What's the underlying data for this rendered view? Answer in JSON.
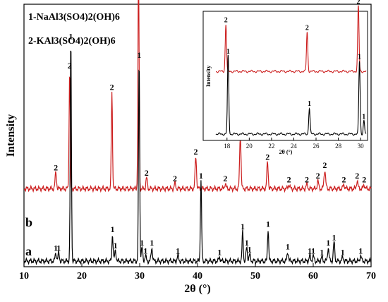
{
  "chart_data": [
    {
      "type": "line",
      "xlabel": "2θ (°)",
      "ylabel": "Intensity",
      "xlim": [
        10,
        70
      ],
      "x_ticks": [
        "10",
        "20",
        "30",
        "40",
        "50",
        "60",
        "70"
      ],
      "legend": [
        {
          "name": "1-NaAl3(SO4)2(OH)6"
        },
        {
          "name": "2-KAl3(SO4)2(OH)6"
        }
      ],
      "series": [
        {
          "name": "b",
          "color": "#cc1f1f",
          "baseline": 0.27,
          "peaks": [
            {
              "x": 15.5,
              "y": 0.06,
              "w": 0.12,
              "label": "2"
            },
            {
              "x": 17.9,
              "y": 0.44,
              "w": 0.1,
              "label": "2"
            },
            {
              "x": 25.2,
              "y": 0.36,
              "w": 0.1,
              "label": "2"
            },
            {
              "x": 29.8,
              "y": 0.82,
              "w": 0.1,
              "label": "2"
            },
            {
              "x": 31.2,
              "y": 0.04,
              "w": 0.12,
              "label": "2"
            },
            {
              "x": 36.1,
              "y": 0.02,
              "w": 0.12,
              "label": "2"
            },
            {
              "x": 39.7,
              "y": 0.12,
              "w": 0.12,
              "label": "2"
            },
            {
              "x": 44.8,
              "y": 0.02,
              "w": 0.12,
              "label": "2"
            },
            {
              "x": 47.4,
              "y": 0.2,
              "w": 0.12,
              "label": "2"
            },
            {
              "x": 52.1,
              "y": 0.1,
              "w": 0.12,
              "label": "2"
            },
            {
              "x": 55.8,
              "y": 0.015,
              "w": 0.14,
              "label": "2"
            },
            {
              "x": 58.9,
              "y": 0.015,
              "w": 0.14,
              "label": "2"
            },
            {
              "x": 60.8,
              "y": 0.03,
              "w": 0.12,
              "label": "2"
            },
            {
              "x": 62.0,
              "y": 0.07,
              "w": 0.14,
              "label": "2"
            },
            {
              "x": 65.3,
              "y": 0.015,
              "w": 0.14,
              "label": "2"
            },
            {
              "x": 67.6,
              "y": 0.03,
              "w": 0.12,
              "label": "2"
            },
            {
              "x": 68.8,
              "y": 0.015,
              "w": 0.12,
              "label": "2"
            }
          ]
        },
        {
          "name": "a",
          "color": "#000000",
          "baseline": 0.0,
          "peaks": [
            {
              "x": 15.5,
              "y": 0.03,
              "w": 0.12,
              "label": "1"
            },
            {
              "x": 16.0,
              "y": 0.03,
              "w": 0.12,
              "label": "1"
            },
            {
              "x": 18.1,
              "y": 0.82,
              "w": 0.1,
              "label": "1"
            },
            {
              "x": 25.3,
              "y": 0.1,
              "w": 0.1,
              "label": "1"
            },
            {
              "x": 25.8,
              "y": 0.04,
              "w": 0.12,
              "label": "1"
            },
            {
              "x": 29.9,
              "y": 0.75,
              "w": 0.1,
              "label": "1"
            },
            {
              "x": 30.4,
              "y": 0.05,
              "w": 0.12,
              "label": "1"
            },
            {
              "x": 31.0,
              "y": 0.02,
              "w": 0.12,
              "label": "1"
            },
            {
              "x": 32.1,
              "y": 0.05,
              "w": 0.12,
              "label": "1"
            },
            {
              "x": 36.6,
              "y": 0.02,
              "w": 0.12,
              "label": "1"
            },
            {
              "x": 40.6,
              "y": 0.3,
              "w": 0.1,
              "label": "1"
            },
            {
              "x": 43.8,
              "y": 0.015,
              "w": 0.12,
              "label": "1"
            },
            {
              "x": 47.8,
              "y": 0.11,
              "w": 0.1,
              "label": "1"
            },
            {
              "x": 48.5,
              "y": 0.05,
              "w": 0.12,
              "label": "1"
            },
            {
              "x": 49.0,
              "y": 0.025,
              "w": 0.12,
              "label": "1"
            },
            {
              "x": 52.2,
              "y": 0.12,
              "w": 0.1,
              "label": "1"
            },
            {
              "x": 55.6,
              "y": 0.035,
              "w": 0.12,
              "label": "1"
            },
            {
              "x": 59.4,
              "y": 0.02,
              "w": 0.12,
              "label": "1"
            },
            {
              "x": 60.0,
              "y": 0.02,
              "w": 0.12,
              "label": "1"
            },
            {
              "x": 61.5,
              "y": 0.015,
              "w": 0.12,
              "label": "1"
            },
            {
              "x": 62.6,
              "y": 0.05,
              "w": 0.12,
              "label": "1"
            },
            {
              "x": 63.6,
              "y": 0.07,
              "w": 0.12,
              "label": "1"
            },
            {
              "x": 65.1,
              "y": 0.015,
              "w": 0.12,
              "label": "1"
            },
            {
              "x": 68.2,
              "y": 0.02,
              "w": 0.12,
              "label": "1"
            }
          ]
        }
      ]
    },
    {
      "type": "line",
      "xlabel": "2θ (°)",
      "ylabel": "Intensity",
      "xlim": [
        17,
        30.5
      ],
      "x_ticks": [
        "18",
        "20",
        "22",
        "24",
        "26",
        "28",
        "30"
      ],
      "series": [
        {
          "name": "2",
          "color": "#cc1f1f",
          "baseline": 0.48,
          "peaks": [
            {
              "x": 17.9,
              "y": 0.36,
              "w": 0.06,
              "label": "2"
            },
            {
              "x": 25.2,
              "y": 0.3,
              "w": 0.06,
              "label": "2"
            },
            {
              "x": 29.8,
              "y": 0.5,
              "w": 0.06,
              "label": "2"
            }
          ]
        },
        {
          "name": "1",
          "color": "#000000",
          "baseline": 0.0,
          "peaks": [
            {
              "x": 18.1,
              "y": 0.6,
              "w": 0.06,
              "label": "1"
            },
            {
              "x": 25.4,
              "y": 0.2,
              "w": 0.06,
              "label": "1"
            },
            {
              "x": 29.9,
              "y": 0.56,
              "w": 0.06,
              "label": "1"
            },
            {
              "x": 30.3,
              "y": 0.1,
              "w": 0.06,
              "label": "1"
            }
          ]
        }
      ]
    }
  ]
}
